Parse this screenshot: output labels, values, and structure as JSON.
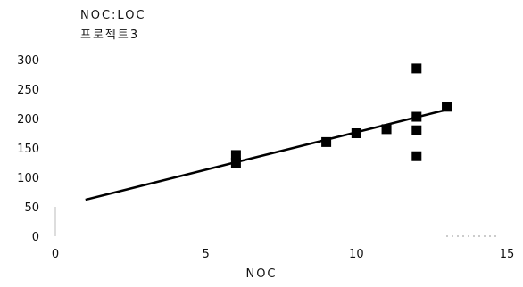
{
  "chart_data": {
    "type": "scatter",
    "title": "NOC:LOC",
    "subtitle": "프로젝트3",
    "xlabel": "NOC",
    "ylabel": "",
    "xlim": [
      0,
      15
    ],
    "ylim": [
      0,
      300
    ],
    "xticks": [
      0,
      5,
      10,
      15
    ],
    "yticks": [
      0,
      50,
      100,
      150,
      200,
      250,
      300
    ],
    "grid": false,
    "series": [
      {
        "marker": "square",
        "color": "#000000",
        "points": [
          {
            "x": 6,
            "y": 138
          },
          {
            "x": 6,
            "y": 125
          },
          {
            "x": 9,
            "y": 160
          },
          {
            "x": 10,
            "y": 175
          },
          {
            "x": 11,
            "y": 182
          },
          {
            "x": 12,
            "y": 285
          },
          {
            "x": 12,
            "y": 203
          },
          {
            "x": 12,
            "y": 180
          },
          {
            "x": 12,
            "y": 136
          },
          {
            "x": 13,
            "y": 220
          }
        ]
      }
    ],
    "trendline": {
      "from": {
        "x": 1,
        "y": 62
      },
      "to": {
        "x": 13,
        "y": 215
      },
      "color": "#000000"
    }
  }
}
